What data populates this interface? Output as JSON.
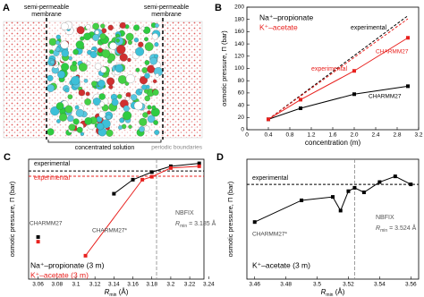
{
  "panel_a": {
    "label": "A",
    "membrane_left": [
      "semi-permeable",
      "membrane"
    ],
    "membrane_right": [
      "semi-permeable",
      "membrane"
    ],
    "solution": "concentrated solution",
    "boundaries": "periodic boundaries"
  },
  "chart_data": [
    {
      "type": "line",
      "panel": "B",
      "xlabel": "concentration (m)",
      "ylabel": "osmotic pressure, Π (bar)",
      "xlim": [
        0,
        3.2
      ],
      "ylim": [
        0,
        200
      ],
      "xticks": [
        0,
        0.4,
        0.8,
        1.2,
        1.6,
        {
          "value": 2,
          "label": "2.0"
        },
        2.4,
        2.8,
        3.2
      ],
      "yticks": [
        0,
        20,
        40,
        60,
        80,
        100,
        120,
        140,
        160,
        180,
        200
      ],
      "series": [
        {
          "name": "Na⁺–propionate",
          "model": "CHARMM27",
          "color": "#000000",
          "x": [
            0.4,
            1,
            2,
            3
          ],
          "values": [
            17,
            35,
            58,
            71
          ]
        },
        {
          "name": "K⁺–acetate",
          "model": "CHARMM27",
          "color": "#e8211e",
          "x": [
            0.4,
            1,
            2,
            3
          ],
          "values": [
            17,
            49,
            96,
            150
          ]
        }
      ],
      "references": [
        {
          "label": "experimental",
          "color": "#000000",
          "x": [
            0.4,
            3
          ],
          "values": [
            17,
            186
          ]
        },
        {
          "label": "experimental",
          "color": "#e8211e",
          "x": [
            0.4,
            3
          ],
          "values": [
            17,
            181
          ]
        }
      ]
    },
    {
      "type": "line",
      "panel": "C",
      "xlabel": [
        "R",
        "min",
        " (Å)"
      ],
      "ylabel": "osmotic pressure, Π (bar)",
      "xlim": [
        3.05,
        3.235
      ],
      "ylim": [
        0,
        205
      ],
      "xticks": [
        3.06,
        3.08,
        3.1,
        3.12,
        3.14,
        3.16,
        3.18,
        3.2,
        3.22,
        3.24
      ],
      "series": [
        {
          "name": "Na⁺–propionate (3 m)",
          "color": "#000000",
          "x": [
            3.06,
            3.1,
            3.14,
            3.16,
            3.18,
            3.2,
            3.23
          ],
          "values": [
            72,
            null,
            146,
            170,
            183,
            193,
            198
          ]
        },
        {
          "name": "K⁺–acetate (3 m)",
          "color": "#e8211e",
          "x": [
            3.06,
            3.08,
            3.11,
            3.17,
            3.18,
            3.2,
            3.23
          ],
          "values": [
            64,
            null,
            40,
            170,
            175,
            190,
            193
          ]
        }
      ],
      "references": [
        {
          "label": "experimental",
          "color": "#000000",
          "x": [
            3.05,
            3.235
          ],
          "values": [
            185,
            185
          ]
        },
        {
          "label": "experimental",
          "color": "#e8211e",
          "x": [
            3.05,
            3.235
          ],
          "values": [
            176,
            176
          ]
        }
      ],
      "nbfix": {
        "label": "NBFIX",
        "x": 3.185,
        "text": [
          "R",
          "min",
          " = 3.185 Å"
        ]
      },
      "annotations": [
        "CHARMM27",
        "CHARMM27*"
      ]
    },
    {
      "type": "line",
      "panel": "D",
      "xlabel": [
        "R",
        "min",
        " (Å)"
      ],
      "ylabel": "osmotic pressure, Π (bar)",
      "xlim": [
        3.455,
        3.565
      ],
      "ylim": [
        100,
        205
      ],
      "xticks": [
        3.46,
        3.48,
        3.5,
        3.52,
        3.54,
        3.56
      ],
      "series": [
        {
          "name": "K⁺–acetate (3 m)",
          "color": "#000000",
          "x": [
            3.46,
            3.49,
            3.51,
            3.515,
            3.52,
            3.524,
            3.53,
            3.54,
            3.55,
            3.56
          ],
          "values": [
            150,
            169,
            172,
            160,
            177,
            180,
            176,
            185,
            190,
            183
          ]
        }
      ],
      "references": [
        {
          "label": "experimental",
          "color": "#000000",
          "x": [
            3.455,
            3.565
          ],
          "values": [
            183,
            183
          ]
        }
      ],
      "nbfix": {
        "label": "NBFIX",
        "x": 3.524,
        "text": [
          "R",
          "min",
          " = 3.524 Å"
        ]
      },
      "annotations": [
        "CHARMM27*"
      ]
    }
  ]
}
